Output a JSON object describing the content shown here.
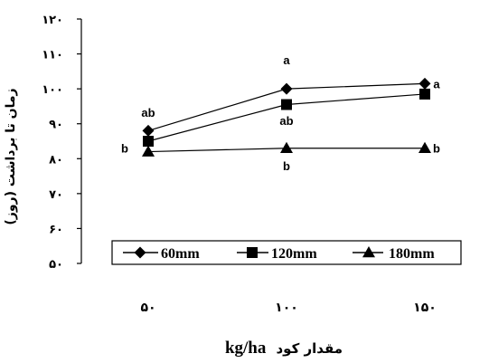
{
  "chart_data": {
    "type": "line",
    "categories": [
      "۵۰",
      "۱۰۰",
      "۱۵۰"
    ],
    "x_values": [
      50,
      100,
      150
    ],
    "ylabel": "زمان تا برداشت (روز)",
    "xlabel_persian": "مقدار کود",
    "xlabel_unit": "kg/ha",
    "ylim": [
      50,
      120
    ],
    "yticks": [
      {
        "value": 50,
        "label": "۵۰"
      },
      {
        "value": 60,
        "label": "۶۰"
      },
      {
        "value": 70,
        "label": "۷۰"
      },
      {
        "value": 80,
        "label": "۸۰"
      },
      {
        "value": 90,
        "label": "۹۰"
      },
      {
        "value": 100,
        "label": "۱۰۰"
      },
      {
        "value": 110,
        "label": "۱۱۰"
      },
      {
        "value": 120,
        "label": "۱۲۰"
      }
    ],
    "grid": false,
    "legend_position": "bottom-inside",
    "series": [
      {
        "name": "60mm",
        "marker": "diamond",
        "values": [
          88,
          100,
          101.5
        ]
      },
      {
        "name": "120mm",
        "marker": "square",
        "values": [
          85,
          95.5,
          98.5
        ]
      },
      {
        "name": "180mm",
        "marker": "triangle",
        "values": [
          82,
          83,
          83
        ]
      }
    ],
    "significance_labels": [
      {
        "text": "ab",
        "category_index": 0,
        "value": 92,
        "side": "above"
      },
      {
        "text": "b",
        "category_index": 0,
        "value": 83,
        "side": "left"
      },
      {
        "text": "a",
        "category_index": 1,
        "value": 107,
        "side": "above"
      },
      {
        "text": "ab",
        "category_index": 1,
        "value": 91,
        "side": "below"
      },
      {
        "text": "b",
        "category_index": 1,
        "value": 78,
        "side": "below"
      },
      {
        "text": "a",
        "category_index": 2,
        "value": 101.5,
        "side": "right"
      },
      {
        "text": "b",
        "category_index": 2,
        "value": 83,
        "side": "right"
      }
    ]
  }
}
